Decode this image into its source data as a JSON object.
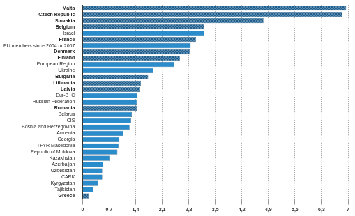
{
  "chart_data": {
    "type": "bar",
    "orientation": "horizontal",
    "categories": [
      "Malta",
      "Czech Republic",
      "Slovakia",
      "Belgium",
      "Israel",
      "France",
      "EU members since 2004 or 2007",
      "Denmark",
      "Finland",
      "European Region",
      "Ukraine",
      "Bulgaria",
      "Lithuania",
      "Latvia",
      "Eur-B+C",
      "Russian Federation",
      "Romania",
      "Belarus",
      "CIS",
      "Bosnia and Herzegovina",
      "Armenia",
      "Georgia",
      "TFYR Macedonia",
      "Republic of Moldova",
      "Kazakhstan",
      "Azerbaijan",
      "Uzbekistan",
      "CARK",
      "Kyrgyzstan",
      "Tajikistan",
      "Greece"
    ],
    "values": [
      6.95,
      6.85,
      4.77,
      3.21,
      3.21,
      2.99,
      2.85,
      2.83,
      2.57,
      2.42,
      1.87,
      1.73,
      1.54,
      1.52,
      1.45,
      1.43,
      1.43,
      1.3,
      1.28,
      1.24,
      1.07,
      0.97,
      0.95,
      0.92,
      0.73,
      0.54,
      0.52,
      0.52,
      0.41,
      0.29,
      0.16
    ],
    "colors": [
      "#1f5f8f",
      "#1f5f8f",
      "#1f5f8f",
      "#1f5f8f",
      "#2b8ccc",
      "#1f5f8f",
      "#2b8ccc",
      "#1f5f8f",
      "#1f5f8f",
      "#2b8ccc",
      "#2b8ccc",
      "#1f5f8f",
      "#1f5f8f",
      "#1f5f8f",
      "#2b8ccc",
      "#2b8ccc",
      "#1f5f8f",
      "#2b8ccc",
      "#2b8ccc",
      "#2b8ccc",
      "#2b8ccc",
      "#2b8ccc",
      "#2b8ccc",
      "#2b8ccc",
      "#2b8ccc",
      "#2b8ccc",
      "#2b8ccc",
      "#2b8ccc",
      "#2b8ccc",
      "#2b8ccc",
      "#1f5f8f"
    ],
    "xlim": [
      0,
      7
    ],
    "xticks": [
      0,
      {
        "value": 0.7,
        "label": "0,7"
      },
      {
        "value": 1.4,
        "label": "1,4"
      },
      {
        "value": 2.1,
        "label": "2,1"
      },
      {
        "value": 2.8,
        "label": "2,8"
      },
      {
        "value": 3.5,
        "label": "3,5"
      },
      {
        "value": 4.2,
        "label": "4,2"
      },
      {
        "value": 4.9,
        "label": "4,9"
      },
      {
        "value": 5.6,
        "label": "5,6"
      },
      {
        "value": 6.3,
        "label": "6,3"
      },
      7
    ],
    "grid": true
  }
}
